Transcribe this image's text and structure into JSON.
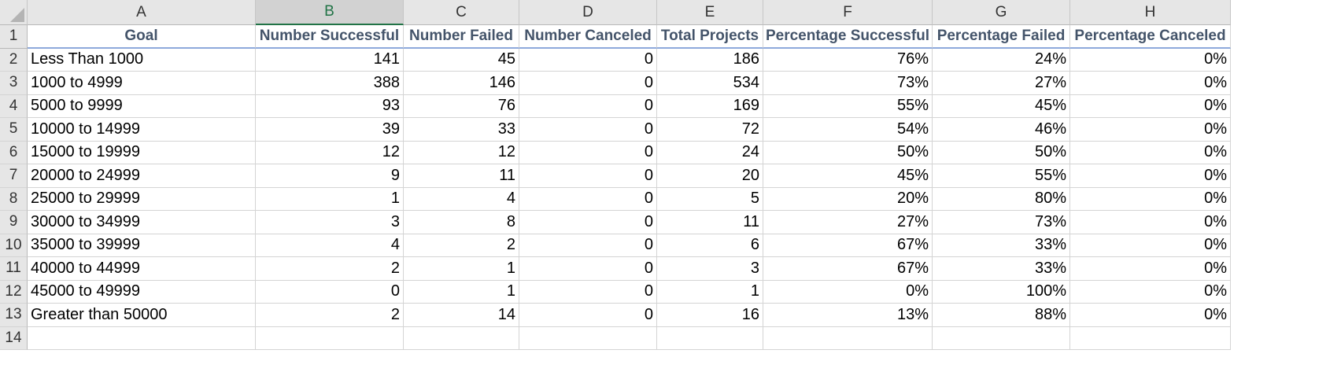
{
  "spreadsheet": {
    "corner_icon": "select-all-triangle-icon",
    "selected_column": "B",
    "column_letters": [
      "A",
      "B",
      "C",
      "D",
      "E",
      "F",
      "G",
      "H"
    ],
    "row_numbers": [
      "1",
      "2",
      "3",
      "4",
      "5",
      "6",
      "7",
      "8",
      "9",
      "10",
      "11",
      "12",
      "13",
      "14"
    ],
    "headers": [
      "Goal",
      "Number Successful",
      "Number Failed",
      "Number Canceled",
      "Total Projects",
      "Percentage Successful",
      "Percentage Failed",
      "Percentage Canceled"
    ],
    "rows": [
      [
        "Less Than 1000",
        "141",
        "45",
        "0",
        "186",
        "76%",
        "24%",
        "0%"
      ],
      [
        "1000 to 4999",
        "388",
        "146",
        "0",
        "534",
        "73%",
        "27%",
        "0%"
      ],
      [
        "5000 to 9999",
        "93",
        "76",
        "0",
        "169",
        "55%",
        "45%",
        "0%"
      ],
      [
        "10000 to 14999",
        "39",
        "33",
        "0",
        "72",
        "54%",
        "46%",
        "0%"
      ],
      [
        "15000 to 19999",
        "12",
        "12",
        "0",
        "24",
        "50%",
        "50%",
        "0%"
      ],
      [
        "20000 to 24999",
        "9",
        "11",
        "0",
        "20",
        "45%",
        "55%",
        "0%"
      ],
      [
        "25000 to 29999",
        "1",
        "4",
        "0",
        "5",
        "20%",
        "80%",
        "0%"
      ],
      [
        "30000 to 34999",
        "3",
        "8",
        "0",
        "11",
        "27%",
        "73%",
        "0%"
      ],
      [
        "35000 to 39999",
        "4",
        "2",
        "0",
        "6",
        "67%",
        "33%",
        "0%"
      ],
      [
        "40000 to 44999",
        "2",
        "1",
        "0",
        "3",
        "67%",
        "33%",
        "0%"
      ],
      [
        "45000 to 49999",
        "0",
        "1",
        "0",
        "1",
        "0%",
        "100%",
        "0%"
      ],
      [
        "Greater than 50000",
        "2",
        "14",
        "0",
        "16",
        "13%",
        "88%",
        "0%"
      ]
    ],
    "colors": {
      "header_bg": "#e6e6e6",
      "selected_header_text": "#217346",
      "title_text": "#44546a",
      "title_border": "#8ea9db",
      "gridline": "#d4d4d4"
    }
  }
}
